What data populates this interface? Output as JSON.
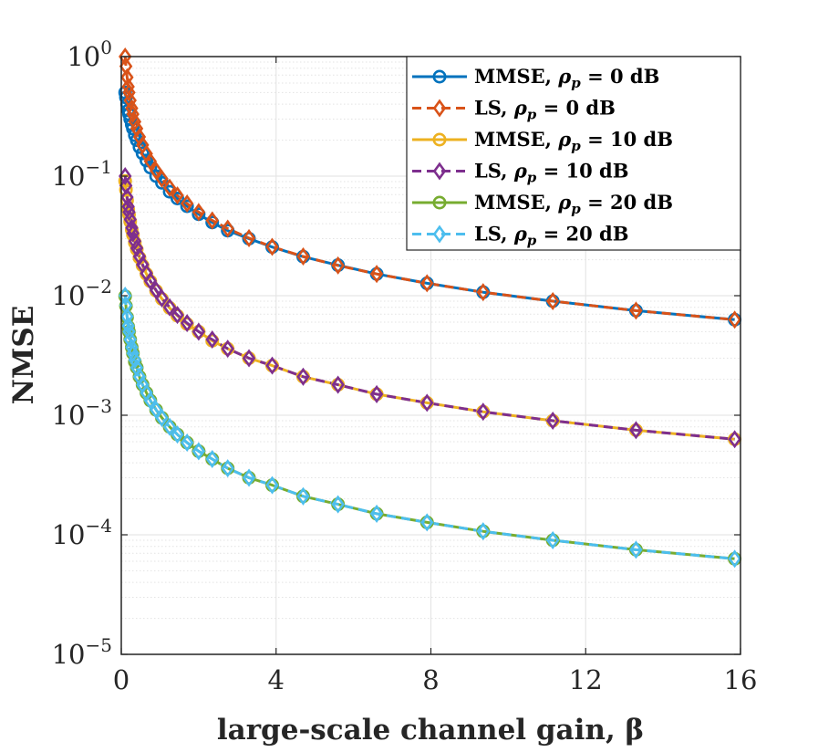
{
  "chart_data": {
    "type": "line",
    "xlabel": "large-scale channel gain, β",
    "ylabel": "NMSE",
    "xlim": [
      0,
      16
    ],
    "ylim": [
      1e-05,
      1
    ],
    "yscale": "log",
    "grid": true,
    "legend_position": "top-right",
    "x_ticks": [
      0,
      4,
      8,
      12,
      16
    ],
    "x_tick_labels": [
      "0",
      "4",
      "8",
      "12",
      "16"
    ],
    "y_ticks": [
      1,
      0.1,
      0.01,
      0.001,
      0.0001,
      1e-05
    ],
    "y_tick_labels": [
      {
        "base": "10",
        "exp": "0"
      },
      {
        "base": "10",
        "exp": "−1"
      },
      {
        "base": "10",
        "exp": "−2"
      },
      {
        "base": "10",
        "exp": "−3"
      },
      {
        "base": "10",
        "exp": "−4"
      },
      {
        "base": "10",
        "exp": "−5"
      }
    ],
    "x": [
      0.1,
      0.12,
      0.15,
      0.18,
      0.2,
      0.23,
      0.27,
      0.3,
      0.35,
      0.4,
      0.47,
      0.55,
      0.65,
      0.75,
      0.9,
      1.05,
      1.25,
      1.45,
      1.7,
      2.0,
      2.35,
      2.75,
      3.3,
      3.9,
      4.7,
      5.6,
      6.6,
      7.9,
      9.35,
      11.15,
      13.3,
      15.85
    ],
    "series": [
      {
        "name": "MMSE",
        "rho": "0",
        "method": "mmse",
        "color": "#0072BD",
        "marker": "circle",
        "dashed": false,
        "values": [
          0.5,
          0.455,
          0.4,
          0.355,
          0.33,
          0.3,
          0.27,
          0.25,
          0.22,
          0.2,
          0.175,
          0.155,
          0.135,
          0.118,
          0.1,
          0.088,
          0.074,
          0.065,
          0.056,
          0.048,
          0.041,
          0.035,
          0.03,
          0.0255,
          0.0212,
          0.018,
          0.0152,
          0.0127,
          0.0107,
          0.009,
          0.0075,
          0.0063
        ]
      },
      {
        "name": "LS",
        "rho": "0",
        "method": "ls",
        "color": "#D95319",
        "marker": "diamond",
        "dashed": true,
        "values": [
          1.0,
          0.83,
          0.67,
          0.56,
          0.5,
          0.43,
          0.37,
          0.33,
          0.285,
          0.25,
          0.213,
          0.182,
          0.154,
          0.133,
          0.111,
          0.095,
          0.08,
          0.069,
          0.059,
          0.05,
          0.0426,
          0.0364,
          0.0303,
          0.0256,
          0.0213,
          0.0179,
          0.0152,
          0.0127,
          0.0107,
          0.009,
          0.0075,
          0.0063
        ]
      },
      {
        "name": "MMSE",
        "rho": "10",
        "method": "mmse",
        "color": "#EDB120",
        "marker": "circle",
        "dashed": false,
        "values": [
          0.091,
          0.077,
          0.0625,
          0.0525,
          0.0476,
          0.0417,
          0.0357,
          0.0323,
          0.0278,
          0.0244,
          0.0208,
          0.0179,
          0.0152,
          0.0132,
          0.011,
          0.0094,
          0.0079,
          0.0068,
          0.0058,
          0.005,
          0.0042,
          0.0036,
          0.003,
          0.0026,
          0.0021,
          0.0018,
          0.0015,
          0.00127,
          0.00107,
          0.0009,
          0.00075,
          0.00063
        ]
      },
      {
        "name": "LS",
        "rho": "10",
        "method": "ls",
        "color": "#7E2F8E",
        "marker": "diamond",
        "dashed": true,
        "values": [
          0.1,
          0.0833,
          0.0667,
          0.0556,
          0.05,
          0.0435,
          0.037,
          0.0333,
          0.0286,
          0.025,
          0.0213,
          0.0182,
          0.0154,
          0.0133,
          0.0111,
          0.0095,
          0.008,
          0.0069,
          0.0059,
          0.005,
          0.0043,
          0.0036,
          0.003,
          0.0026,
          0.0021,
          0.0018,
          0.0015,
          0.00127,
          0.00107,
          0.0009,
          0.00075,
          0.00063
        ]
      },
      {
        "name": "MMSE",
        "rho": "20",
        "method": "mmse",
        "color": "#77AC30",
        "marker": "circle",
        "dashed": false,
        "values": [
          0.0099,
          0.0082,
          0.0066,
          0.0055,
          0.005,
          0.0043,
          0.0037,
          0.0033,
          0.0028,
          0.0025,
          0.0021,
          0.0018,
          0.00154,
          0.00133,
          0.00111,
          0.00095,
          0.0008,
          0.00069,
          0.00059,
          0.0005,
          0.00043,
          0.00036,
          0.0003,
          0.00026,
          0.00021,
          0.00018,
          0.00015,
          0.000127,
          0.000107,
          9e-05,
          7.5e-05,
          6.3e-05
        ]
      },
      {
        "name": "LS",
        "rho": "20",
        "method": "ls",
        "color": "#4DBEEE",
        "marker": "diamond",
        "dashed": true,
        "values": [
          0.01,
          0.0083,
          0.0067,
          0.0056,
          0.005,
          0.0043,
          0.0037,
          0.0033,
          0.0029,
          0.0025,
          0.0021,
          0.0018,
          0.00154,
          0.00133,
          0.00111,
          0.00095,
          0.0008,
          0.00069,
          0.00059,
          0.0005,
          0.00043,
          0.00036,
          0.0003,
          0.00026,
          0.00021,
          0.00018,
          0.00015,
          0.000127,
          0.000107,
          9e-05,
          7.5e-05,
          6.3e-05
        ]
      }
    ],
    "legend": {
      "rho_symbol": "ρ",
      "rho_subscript": "p",
      "equals": "=",
      "unit": "dB",
      "entries": [
        {
          "label": "MMSE,",
          "rho": "0"
        },
        {
          "label": "LS,",
          "rho": "0"
        },
        {
          "label": "MMSE,",
          "rho": "10"
        },
        {
          "label": "LS,",
          "rho": "10"
        },
        {
          "label": "MMSE,",
          "rho": "20"
        },
        {
          "label": "LS,",
          "rho": "20"
        }
      ]
    }
  }
}
